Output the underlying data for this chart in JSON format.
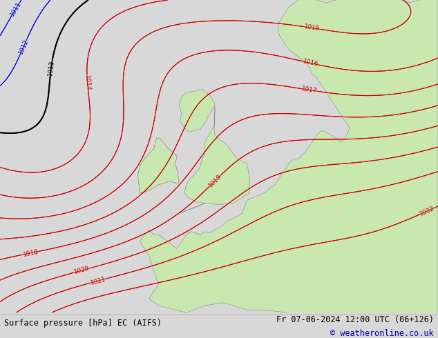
{
  "title_left": "Surface pressure [hPa] EC (AIFS)",
  "title_right": "Fr 07-06-2024 12:00 UTC (06+126)",
  "copyright": "© weatheronline.co.uk",
  "bg_color": "#d8d8d8",
  "land_color": "#c8e8b0",
  "sea_color": "#e0e0e0",
  "blue_color": "#0000cc",
  "red_color": "#cc0000",
  "black_color": "#000000",
  "footer_fontsize": 8.5,
  "label_fontsize": 6.5
}
